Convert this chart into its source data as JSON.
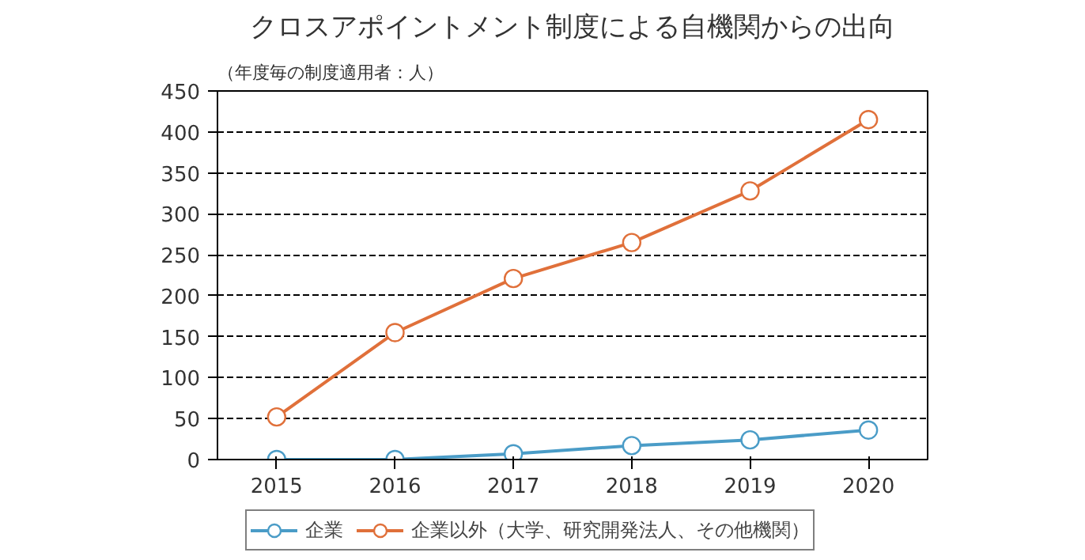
{
  "chart_data": {
    "type": "line",
    "title": "クロスアポイントメント制度による自機関からの出向",
    "subtitle": "（年度毎の制度適用者：人）",
    "x": [
      2015,
      2016,
      2017,
      2018,
      2019,
      2020
    ],
    "series": [
      {
        "name": "企業",
        "color": "#4a9cc7",
        "values": [
          0,
          0,
          7,
          17,
          24,
          36
        ]
      },
      {
        "name": "企業以外（大学、研究開発法人、その他機関）",
        "color": "#e0703a",
        "values": [
          52,
          155,
          221,
          265,
          328,
          415
        ]
      }
    ],
    "xlim": [
      2014.5,
      2020.5
    ],
    "xticks": [
      2015,
      2016,
      2017,
      2018,
      2019,
      2020
    ],
    "ylim": [
      0,
      450
    ],
    "yticks": [
      0,
      50,
      100,
      150,
      200,
      250,
      300,
      350,
      400,
      450
    ],
    "grid": "y",
    "legend": "bottom",
    "marker": "circle",
    "line_style": "solid"
  }
}
